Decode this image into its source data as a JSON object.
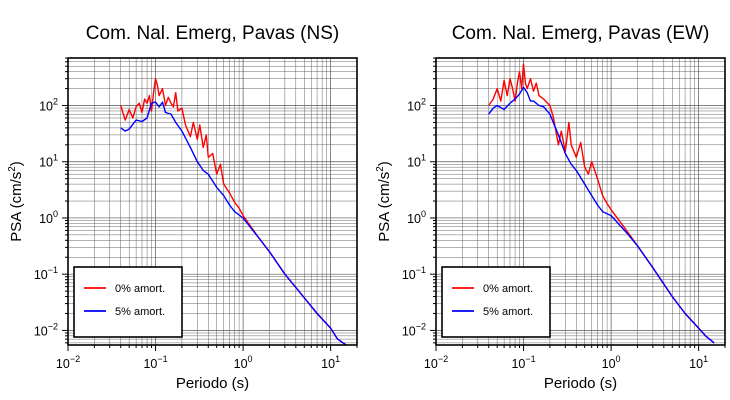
{
  "chart_data": [
    {
      "type": "line",
      "title": "Com. Nal. Emerg, Pavas (NS)",
      "xlabel": "Periodo (s)",
      "ylabel": "PSA (cm/s²)",
      "xscale": "log",
      "yscale": "log",
      "xlim": [
        0.01,
        20
      ],
      "ylim": [
        0.0055,
        700
      ],
      "grid": true,
      "legend_position": "bottom-left",
      "x_ticks": [
        {
          "value": 0.01,
          "base": "10",
          "exp": "−2"
        },
        {
          "value": 0.1,
          "base": "10",
          "exp": "−1"
        },
        {
          "value": 1,
          "base": "10",
          "exp": "0"
        },
        {
          "value": 10,
          "base": "10",
          "exp": "1"
        }
      ],
      "y_ticks": [
        {
          "value": 0.01,
          "base": "10",
          "exp": "−2"
        },
        {
          "value": 0.1,
          "base": "10",
          "exp": "−1"
        },
        {
          "value": 1,
          "base": "10",
          "exp": "0"
        },
        {
          "value": 10,
          "base": "10",
          "exp": "1"
        },
        {
          "value": 100,
          "base": "10",
          "exp": "2"
        }
      ],
      "series": [
        {
          "name": "0% amort.",
          "color": "#ff0000",
          "x": [
            0.04,
            0.045,
            0.05,
            0.055,
            0.06,
            0.065,
            0.07,
            0.075,
            0.08,
            0.085,
            0.09,
            0.095,
            0.1,
            0.105,
            0.11,
            0.12,
            0.13,
            0.14,
            0.15,
            0.16,
            0.17,
            0.18,
            0.2,
            0.22,
            0.25,
            0.27,
            0.3,
            0.32,
            0.35,
            0.38,
            0.4,
            0.45,
            0.5,
            0.55,
            0.6,
            0.7,
            0.8,
            0.9,
            1,
            1.5,
            2,
            3,
            5,
            7,
            10,
            12,
            15
          ],
          "y": [
            100,
            55,
            85,
            60,
            95,
            110,
            75,
            130,
            110,
            150,
            80,
            170,
            300,
            230,
            150,
            200,
            100,
            140,
            110,
            95,
            170,
            80,
            90,
            45,
            28,
            50,
            25,
            45,
            18,
            30,
            12,
            14,
            6,
            9,
            4,
            2.8,
            1.9,
            1.5,
            1.1,
            0.45,
            0.25,
            0.1,
            0.038,
            0.02,
            0.011,
            0.007,
            0.0055
          ]
        },
        {
          "name": "5% amort.",
          "color": "#0000ff",
          "x": [
            0.04,
            0.045,
            0.05,
            0.06,
            0.07,
            0.08,
            0.09,
            0.1,
            0.11,
            0.12,
            0.13,
            0.15,
            0.17,
            0.2,
            0.25,
            0.3,
            0.35,
            0.4,
            0.5,
            0.6,
            0.7,
            0.8,
            1,
            1.5,
            2,
            3,
            5,
            7,
            10,
            12,
            15
          ],
          "y": [
            40,
            35,
            38,
            55,
            52,
            60,
            110,
            115,
            95,
            115,
            75,
            70,
            50,
            35,
            18,
            10,
            7,
            6,
            3.5,
            2.5,
            1.7,
            1.3,
            1,
            0.45,
            0.25,
            0.1,
            0.038,
            0.02,
            0.011,
            0.007,
            0.0055
          ]
        }
      ]
    },
    {
      "type": "line",
      "title": "Com. Nal. Emerg, Pavas (EW)",
      "xlabel": "Periodo (s)",
      "ylabel": "PSA (cm/s²)",
      "xscale": "log",
      "yscale": "log",
      "xlim": [
        0.01,
        20
      ],
      "ylim": [
        0.0055,
        700
      ],
      "grid": true,
      "legend_position": "bottom-left",
      "x_ticks": [
        {
          "value": 0.01,
          "base": "10",
          "exp": "−2"
        },
        {
          "value": 0.1,
          "base": "10",
          "exp": "−1"
        },
        {
          "value": 1,
          "base": "10",
          "exp": "0"
        },
        {
          "value": 10,
          "base": "10",
          "exp": "1"
        }
      ],
      "y_ticks": [
        {
          "value": 0.01,
          "base": "10",
          "exp": "−2"
        },
        {
          "value": 0.1,
          "base": "10",
          "exp": "−1"
        },
        {
          "value": 1,
          "base": "10",
          "exp": "0"
        },
        {
          "value": 10,
          "base": "10",
          "exp": "1"
        },
        {
          "value": 100,
          "base": "10",
          "exp": "2"
        }
      ],
      "series": [
        {
          "name": "0% amort.",
          "color": "#ff0000",
          "x": [
            0.04,
            0.045,
            0.05,
            0.055,
            0.06,
            0.065,
            0.07,
            0.075,
            0.08,
            0.085,
            0.09,
            0.095,
            0.1,
            0.105,
            0.11,
            0.12,
            0.13,
            0.14,
            0.15,
            0.17,
            0.2,
            0.22,
            0.25,
            0.27,
            0.3,
            0.33,
            0.35,
            0.4,
            0.45,
            0.5,
            0.55,
            0.6,
            0.7,
            0.8,
            0.9,
            1,
            1.5,
            2,
            3,
            5,
            7,
            10,
            12,
            15
          ],
          "y": [
            100,
            130,
            200,
            120,
            280,
            150,
            300,
            200,
            120,
            250,
            400,
            200,
            550,
            250,
            200,
            300,
            180,
            250,
            150,
            130,
            100,
            60,
            20,
            35,
            15,
            50,
            20,
            12,
            22,
            8,
            6,
            10,
            5,
            2.5,
            1.8,
            1.4,
            0.6,
            0.32,
            0.13,
            0.04,
            0.02,
            0.011,
            0.008,
            0.006
          ]
        },
        {
          "name": "5% amort.",
          "color": "#0000ff",
          "x": [
            0.04,
            0.045,
            0.05,
            0.06,
            0.07,
            0.08,
            0.09,
            0.1,
            0.11,
            0.12,
            0.13,
            0.15,
            0.17,
            0.2,
            0.25,
            0.3,
            0.35,
            0.4,
            0.5,
            0.6,
            0.7,
            0.8,
            1,
            1.5,
            2,
            3,
            5,
            7,
            10,
            12,
            15
          ],
          "y": [
            70,
            90,
            100,
            85,
            110,
            130,
            160,
            210,
            170,
            120,
            120,
            100,
            95,
            70,
            30,
            14,
            9,
            7,
            4,
            2.5,
            1.7,
            1.3,
            1.1,
            0.55,
            0.32,
            0.13,
            0.04,
            0.02,
            0.011,
            0.008,
            0.006
          ]
        }
      ]
    }
  ]
}
